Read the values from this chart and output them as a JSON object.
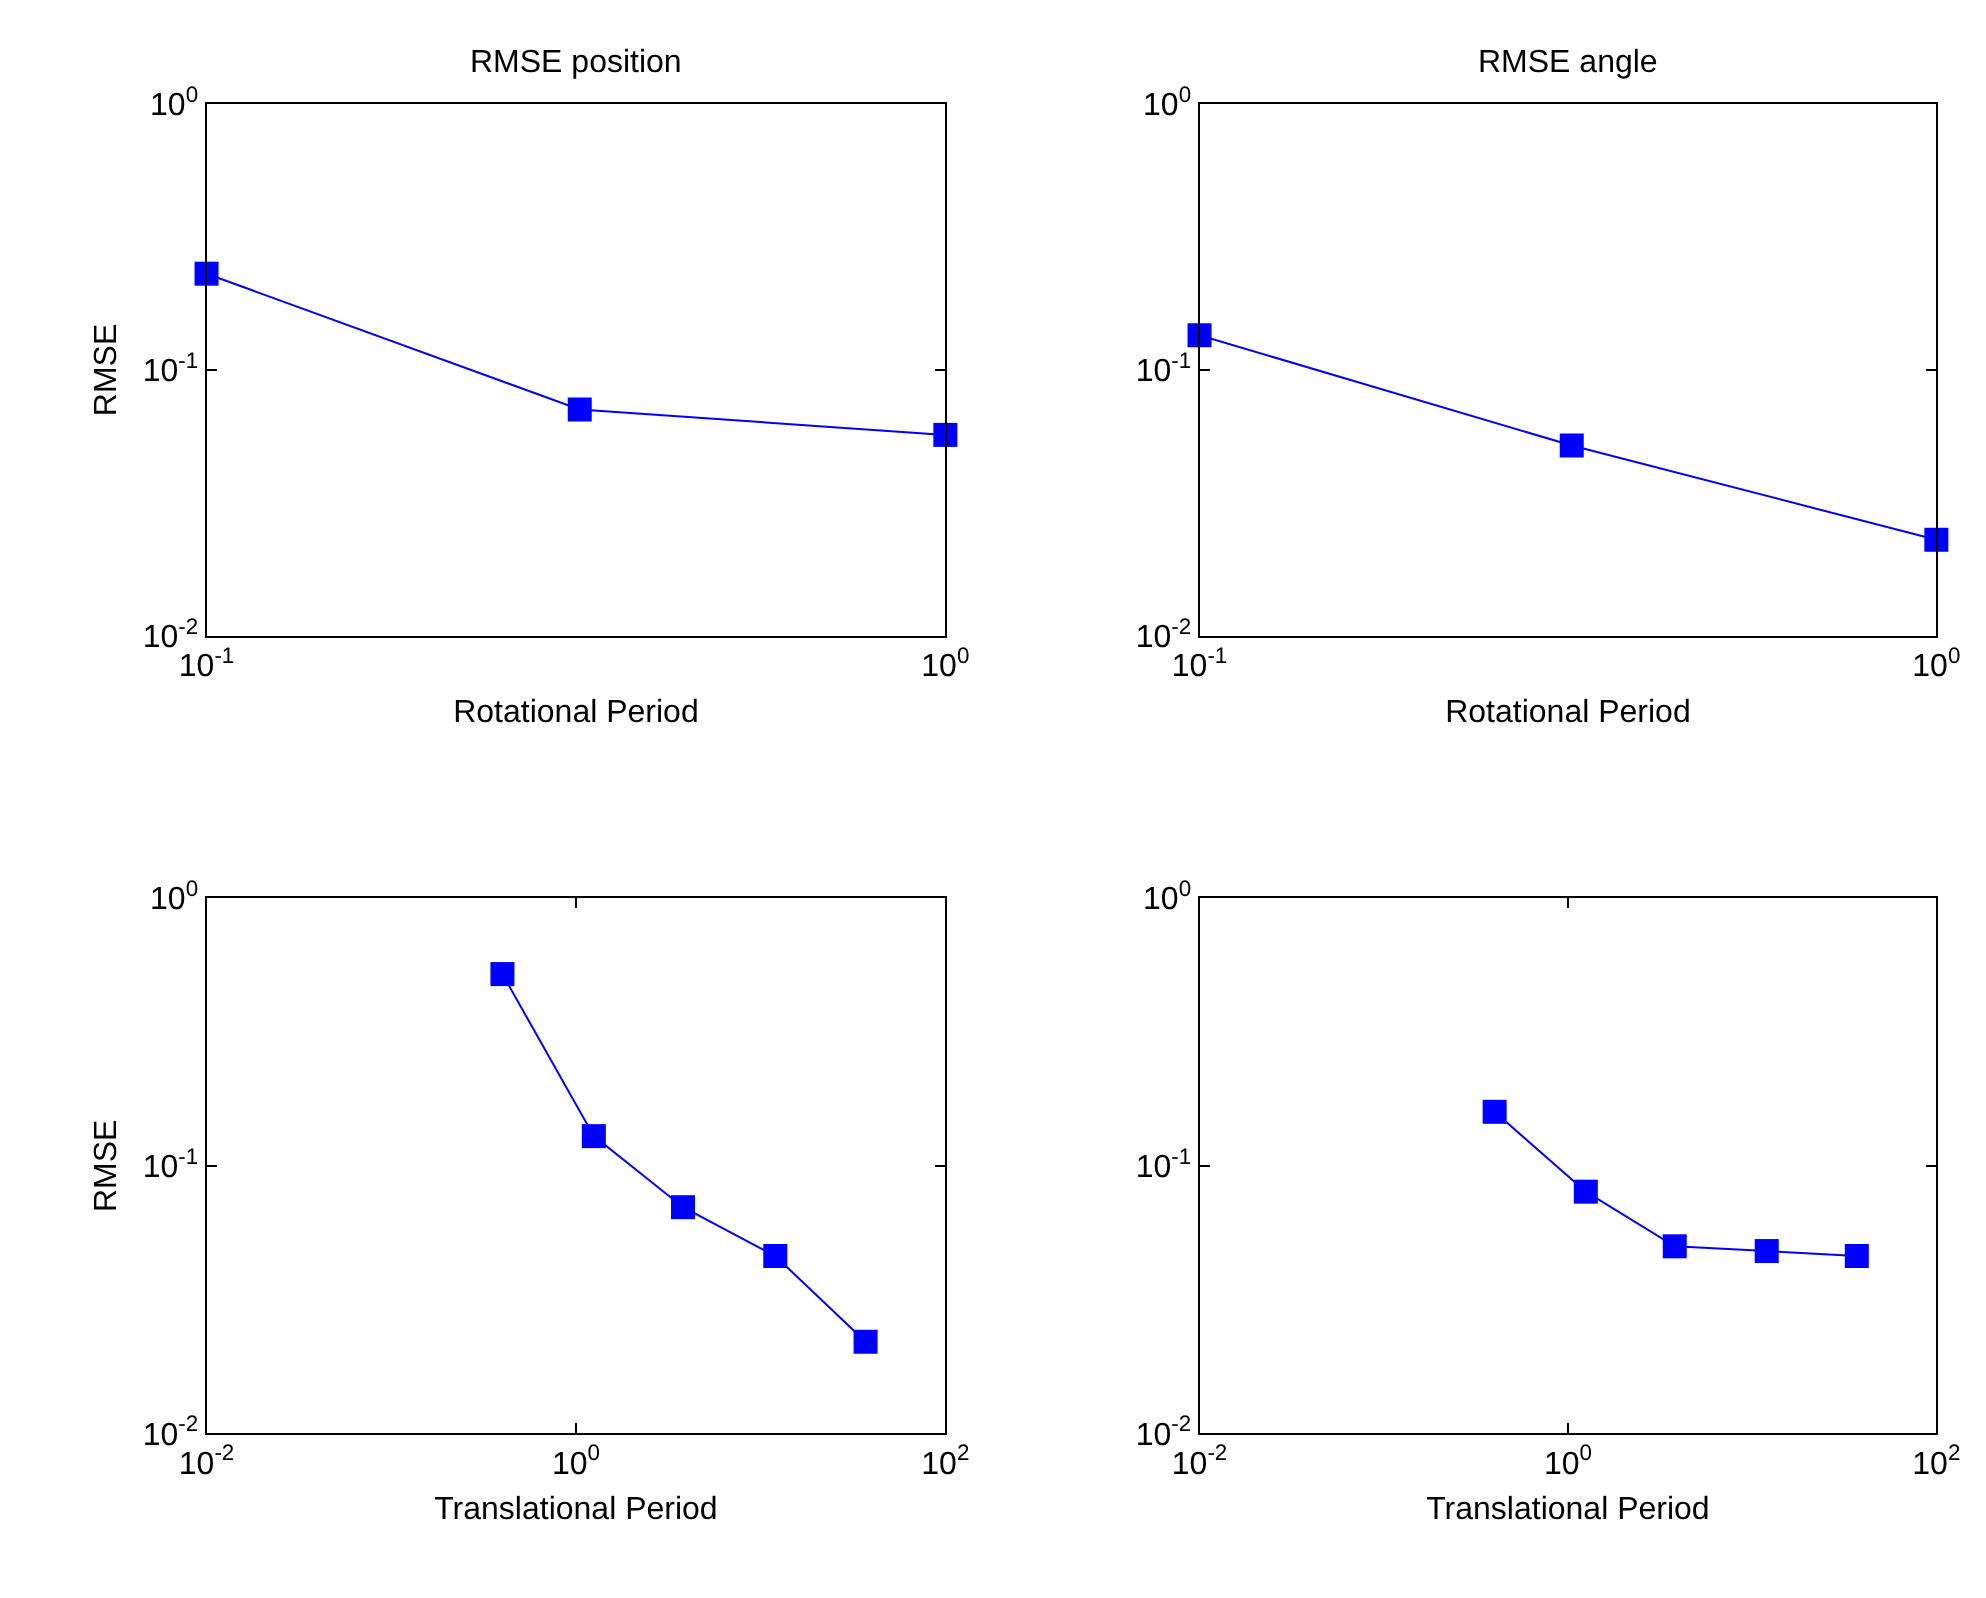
{
  "chart_data": [
    {
      "type": "line",
      "title": "RMSE position",
      "xlabel": "Rotational Period",
      "ylabel": "RMSE",
      "log": "xy",
      "marker": "square",
      "line_style": "solid",
      "x": [
        0.1,
        0.32,
        1
      ],
      "series": [
        {
          "color": "#0000ff",
          "values": [
            0.23,
            0.071,
            0.057
          ]
        }
      ],
      "xlim": [
        0.1,
        1
      ],
      "xticks": [
        {
          "value": 0.1,
          "label": "10$^{-1}$"
        },
        {
          "value": 1,
          "label": "10$^{0}$"
        }
      ],
      "ylim": [
        0.01,
        1
      ],
      "yticks": [
        {
          "value": 0.01,
          "label": "10$^{-2}$"
        },
        {
          "value": 0.1,
          "label": "10$^{-1}$"
        },
        {
          "value": 1,
          "label": "10$^{0}$"
        }
      ]
    },
    {
      "type": "line",
      "title": "RMSE angle",
      "xlabel": "Rotational Period",
      "log": "xy",
      "marker": "square",
      "line_style": "solid",
      "x": [
        0.1,
        0.32,
        1
      ],
      "series": [
        {
          "color": "#0000ff",
          "values": [
            0.135,
            0.052,
            0.023
          ]
        }
      ],
      "xlim": [
        0.1,
        1
      ],
      "xticks": [
        {
          "value": 0.1,
          "label": "10$^{-1}$"
        },
        {
          "value": 1,
          "label": "10$^{0}$"
        }
      ],
      "ylim": [
        0.01,
        1
      ],
      "yticks": [
        {
          "value": 0.01,
          "label": "10$^{-2}$"
        },
        {
          "value": 0.1,
          "label": "10$^{-1}$"
        },
        {
          "value": 1,
          "label": "10$^{0}$"
        }
      ]
    },
    {
      "type": "line",
      "xlabel": "Translational Period",
      "ylabel": "RMSE",
      "log": "xy",
      "marker": "square",
      "line_style": "solid",
      "x": [
        0.4,
        1.25,
        3.8,
        12,
        37
      ],
      "series": [
        {
          "color": "#0000ff",
          "values": [
            0.52,
            0.129,
            0.07,
            0.046,
            0.022
          ]
        }
      ],
      "xlim": [
        0.01,
        100
      ],
      "xticks": [
        {
          "value": 0.01,
          "label": "10$^{-2}$"
        },
        {
          "value": 1,
          "label": "10$^{0}$"
        },
        {
          "value": 100,
          "label": "10$^{2}$"
        }
      ],
      "ylim": [
        0.01,
        1
      ],
      "yticks": [
        {
          "value": 0.01,
          "label": "10$^{-2}$"
        },
        {
          "value": 0.1,
          "label": "10$^{-1}$"
        },
        {
          "value": 1,
          "label": "10$^{0}$"
        }
      ]
    },
    {
      "type": "line",
      "xlabel": "Translational Period",
      "log": "xy",
      "marker": "square",
      "line_style": "solid",
      "x": [
        0.4,
        1.25,
        3.8,
        12,
        37
      ],
      "series": [
        {
          "color": "#0000ff",
          "values": [
            0.159,
            0.08,
            0.05,
            0.048,
            0.046
          ]
        }
      ],
      "xlim": [
        0.01,
        100
      ],
      "xticks": [
        {
          "value": 0.01,
          "label": "10$^{-2}$"
        },
        {
          "value": 1,
          "label": "10$^{0}$"
        },
        {
          "value": 100,
          "label": "10$^{2}$"
        }
      ],
      "ylim": [
        0.01,
        1
      ],
      "yticks": [
        {
          "value": 0.01,
          "label": "10$^{-2}$"
        },
        {
          "value": 0.1,
          "label": "10$^{-1}$"
        },
        {
          "value": 1,
          "label": "10$^{0}$"
        }
      ]
    }
  ]
}
